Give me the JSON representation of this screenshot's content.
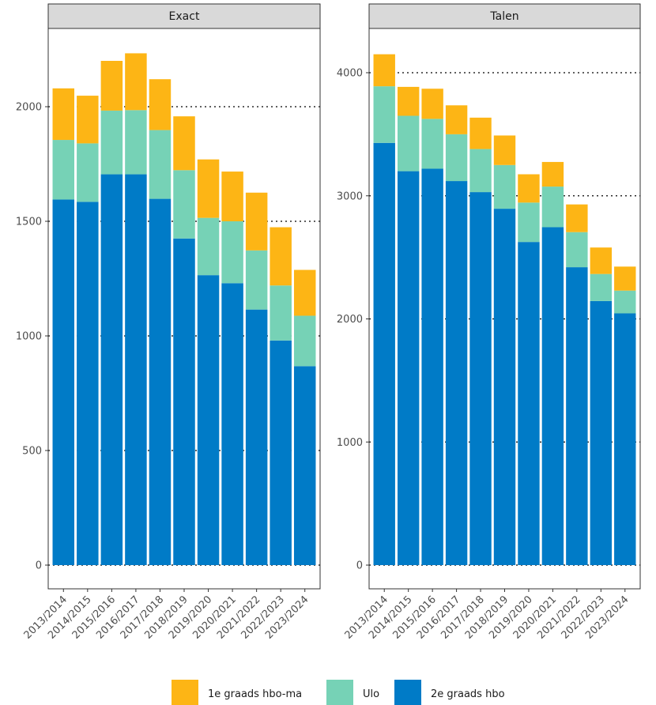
{
  "chart_data": {
    "type": "bar",
    "stacked": true,
    "categories": [
      "2013/2014",
      "2014/2015",
      "2015/2016",
      "2016/2017",
      "2017/2018",
      "2018/2019",
      "2019/2020",
      "2020/2021",
      "2021/2022",
      "2022/2023",
      "2023/2024"
    ],
    "legend": {
      "position": "bottom",
      "entries": [
        {
          "name": "1e graads hbo-ma",
          "color": "#FDB515"
        },
        {
          "name": "Ulo",
          "color": "#76D2B6"
        },
        {
          "name": "2e graads hbo",
          "color": "#007BC7"
        }
      ]
    },
    "grid": "dotted major y",
    "panels": [
      {
        "title": "Exact",
        "ylim": [
          0,
          2350
        ],
        "yticks": [
          0,
          500,
          1000,
          1500,
          2000
        ],
        "series": [
          {
            "name": "2e graads hbo",
            "color": "#007BC7",
            "values": [
              1595,
              1585,
              1705,
              1705,
              1598,
              1425,
              1265,
              1230,
              1115,
              980,
              868
            ]
          },
          {
            "name": "Ulo",
            "color": "#76D2B6",
            "values": [
              260,
              255,
              278,
              280,
              300,
              298,
              250,
              270,
              258,
              240,
              220
            ]
          },
          {
            "name": "1e graads hbo-ma",
            "color": "#FDB515",
            "values": [
              225,
              208,
              217,
              248,
              222,
              235,
              255,
              217,
              252,
              254,
              200
            ]
          }
        ]
      },
      {
        "title": "Talen",
        "ylim": [
          0,
          4400
        ],
        "yticks": [
          0,
          1000,
          2000,
          3000,
          4000
        ],
        "series": [
          {
            "name": "2e graads hbo",
            "color": "#007BC7",
            "values": [
              3430,
              3200,
              3220,
              3120,
              3030,
              2895,
              2625,
              2745,
              2420,
              2145,
              2045
            ]
          },
          {
            "name": "Ulo",
            "color": "#76D2B6",
            "values": [
              460,
              450,
              405,
              380,
              350,
              355,
              320,
              330,
              285,
              220,
              185
            ]
          },
          {
            "name": "1e graads hbo-ma",
            "color": "#FDB515",
            "values": [
              260,
              235,
              245,
              235,
              255,
              240,
              230,
              200,
              225,
              215,
              195
            ]
          }
        ]
      }
    ]
  }
}
